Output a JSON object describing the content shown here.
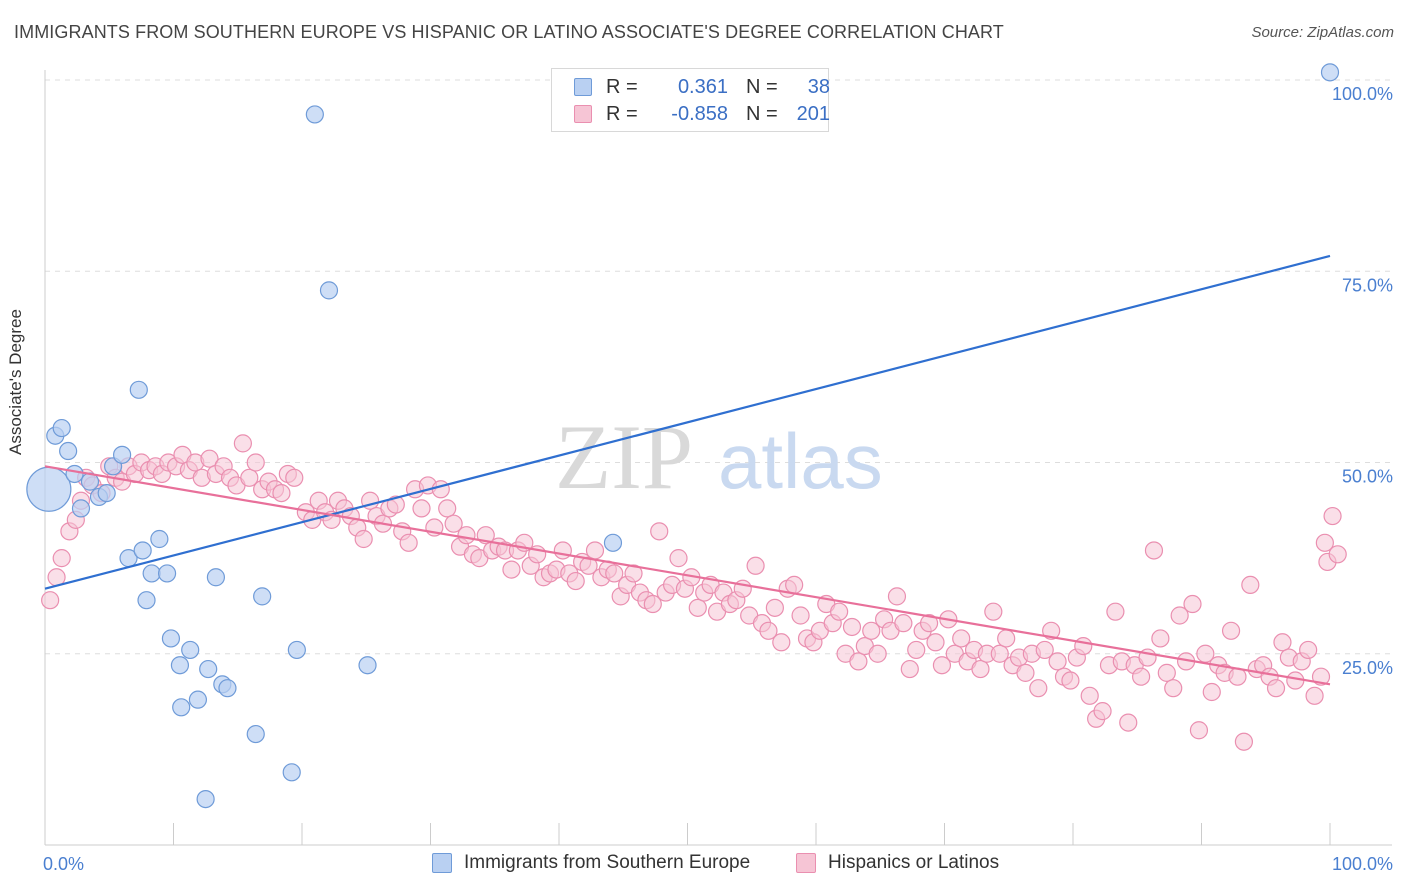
{
  "title": "IMMIGRANTS FROM SOUTHERN EUROPE VS HISPANIC OR LATINO ASSOCIATE'S DEGREE CORRELATION CHART",
  "source": "Source: ZipAtlas.com",
  "legend_top": {
    "rows": [
      {
        "r_label": "R =",
        "r_value": "0.361",
        "n_label": "N =",
        "n_value": "38"
      },
      {
        "r_label": "R =",
        "r_value": "-0.858",
        "n_label": "N =",
        "n_value": "201"
      }
    ]
  },
  "legend_bottom": {
    "series1": "Immigrants from Southern Europe",
    "series2": "Hispanics or Latinos"
  },
  "watermark": {
    "zip": "ZIP",
    "atlas": "atlas"
  },
  "colors": {
    "blue_fill": "#b9d0f2",
    "blue_stroke": "#6f9bd8",
    "blue_line": "#2f6fd0",
    "pink_fill": "#f6c5d5",
    "pink_stroke": "#ea8fb0",
    "pink_line": "#e8709a",
    "tick_text": "#4a7fd0",
    "grid": "#dddddd"
  },
  "chart_data": {
    "type": "scatter",
    "title": "IMMIGRANTS FROM SOUTHERN EUROPE VS HISPANIC OR LATINO ASSOCIATE'S DEGREE CORRELATION CHART",
    "xlabel": "",
    "ylabel": "Associate's Degree",
    "xlim": [
      0,
      100
    ],
    "ylim": [
      0,
      105
    ],
    "x_tick_labels": [
      "0.0%",
      "100.0%"
    ],
    "y_ticks": [
      25,
      50,
      75,
      100
    ],
    "y_tick_labels": [
      "25.0%",
      "50.0%",
      "75.0%",
      "100.0%"
    ],
    "series": [
      {
        "name": "Immigrants from Southern Europe",
        "R": 0.361,
        "N": 38,
        "trend": {
          "x0": 0,
          "y0": 33.5,
          "x1": 100,
          "y1": 77
        },
        "points": [
          [
            0.3,
            46.5,
            3
          ],
          [
            0.8,
            53.5,
            1
          ],
          [
            1.3,
            54.5,
            1
          ],
          [
            1.8,
            51.5,
            1
          ],
          [
            2.3,
            48.5,
            1
          ],
          [
            2.8,
            44,
            1
          ],
          [
            3.5,
            47.5,
            1
          ],
          [
            4.2,
            45.5,
            1
          ],
          [
            4.8,
            46,
            1
          ],
          [
            5.3,
            49.5,
            1
          ],
          [
            6,
            51,
            1
          ],
          [
            6.5,
            37.5,
            1
          ],
          [
            7.3,
            59.5,
            1
          ],
          [
            7.6,
            38.5,
            1
          ],
          [
            7.9,
            32,
            1
          ],
          [
            8.3,
            35.5,
            1
          ],
          [
            8.9,
            40,
            1
          ],
          [
            9.5,
            35.5,
            1
          ],
          [
            9.8,
            27,
            1
          ],
          [
            10.5,
            23.5,
            1
          ],
          [
            10.6,
            18,
            1
          ],
          [
            11.3,
            25.5,
            1
          ],
          [
            11.9,
            19,
            1
          ],
          [
            12.5,
            6,
            1
          ],
          [
            12.7,
            23,
            1
          ],
          [
            13.3,
            35,
            1
          ],
          [
            13.8,
            21,
            1
          ],
          [
            14.2,
            20.5,
            1
          ],
          [
            16.4,
            14.5,
            1
          ],
          [
            16.9,
            32.5,
            1
          ],
          [
            19.2,
            9.5,
            1
          ],
          [
            19.6,
            25.5,
            1
          ],
          [
            21,
            95.5,
            1
          ],
          [
            22.1,
            72.5,
            1
          ],
          [
            25.1,
            23.5,
            1
          ],
          [
            44.2,
            39.5,
            1
          ],
          [
            100,
            101,
            1
          ]
        ]
      },
      {
        "name": "Hispanics or Latinos",
        "R": -0.858,
        "N": 201,
        "trend": {
          "x0": 0,
          "y0": 49.5,
          "x1": 100,
          "y1": 21
        },
        "points": [
          [
            0.4,
            32
          ],
          [
            0.9,
            35
          ],
          [
            1.3,
            37.5
          ],
          [
            1.9,
            41
          ],
          [
            2.4,
            42.5
          ],
          [
            2.8,
            45
          ],
          [
            3.2,
            48
          ],
          [
            3.7,
            47
          ],
          [
            4.4,
            46
          ],
          [
            5,
            49.5
          ],
          [
            5.5,
            48
          ],
          [
            6,
            47.5
          ],
          [
            6.5,
            49.5
          ],
          [
            7,
            48.5
          ],
          [
            7.5,
            50
          ],
          [
            8.1,
            49
          ],
          [
            8.6,
            49.5
          ],
          [
            9.1,
            48.5
          ],
          [
            9.6,
            50
          ],
          [
            10.2,
            49.5
          ],
          [
            10.7,
            51
          ],
          [
            11.2,
            49
          ],
          [
            11.7,
            50
          ],
          [
            12.2,
            48
          ],
          [
            12.8,
            50.5
          ],
          [
            13.3,
            48.5
          ],
          [
            13.9,
            49.5
          ],
          [
            14.4,
            48
          ],
          [
            14.9,
            47
          ],
          [
            15.4,
            52.5
          ],
          [
            15.9,
            48
          ],
          [
            16.4,
            50
          ],
          [
            16.9,
            46.5
          ],
          [
            17.4,
            47.5
          ],
          [
            17.9,
            46.5
          ],
          [
            18.4,
            46
          ],
          [
            18.9,
            48.5
          ],
          [
            19.4,
            48
          ],
          [
            20.3,
            43.5
          ],
          [
            20.8,
            42.5
          ],
          [
            21.3,
            45
          ],
          [
            21.8,
            43.5
          ],
          [
            22.3,
            42.5
          ],
          [
            22.8,
            45
          ],
          [
            23.3,
            44
          ],
          [
            23.8,
            43
          ],
          [
            24.3,
            41.5
          ],
          [
            24.8,
            40
          ],
          [
            25.3,
            45
          ],
          [
            25.8,
            43
          ],
          [
            26.3,
            42
          ],
          [
            26.8,
            44
          ],
          [
            27.3,
            44.5
          ],
          [
            27.8,
            41
          ],
          [
            28.3,
            39.5
          ],
          [
            28.8,
            46.5
          ],
          [
            29.3,
            44
          ],
          [
            29.8,
            47
          ],
          [
            30.3,
            41.5
          ],
          [
            30.8,
            46.5
          ],
          [
            31.3,
            44
          ],
          [
            31.8,
            42
          ],
          [
            32.3,
            39
          ],
          [
            32.8,
            40.5
          ],
          [
            33.3,
            38
          ],
          [
            33.8,
            37.5
          ],
          [
            34.3,
            40.5
          ],
          [
            34.8,
            38.5
          ],
          [
            35.3,
            39
          ],
          [
            35.8,
            38.5
          ],
          [
            36.3,
            36
          ],
          [
            36.8,
            38.5
          ],
          [
            37.3,
            39.5
          ],
          [
            37.8,
            36.5
          ],
          [
            38.3,
            38
          ],
          [
            38.8,
            35
          ],
          [
            39.3,
            35.5
          ],
          [
            39.8,
            36
          ],
          [
            40.3,
            38.5
          ],
          [
            40.8,
            35.5
          ],
          [
            41.3,
            34.5
          ],
          [
            41.8,
            37
          ],
          [
            42.3,
            36.5
          ],
          [
            42.8,
            38.5
          ],
          [
            43.3,
            35
          ],
          [
            43.8,
            36
          ],
          [
            44.3,
            35.5
          ],
          [
            44.8,
            32.5
          ],
          [
            45.3,
            34
          ],
          [
            45.8,
            35.5
          ],
          [
            46.3,
            33
          ],
          [
            46.8,
            32
          ],
          [
            47.3,
            31.5
          ],
          [
            47.8,
            41
          ],
          [
            48.3,
            33
          ],
          [
            48.8,
            34
          ],
          [
            49.3,
            37.5
          ],
          [
            49.8,
            33.5
          ],
          [
            50.3,
            35
          ],
          [
            50.8,
            31
          ],
          [
            51.3,
            33
          ],
          [
            51.8,
            34
          ],
          [
            52.3,
            30.5
          ],
          [
            52.8,
            33
          ],
          [
            53.3,
            31.5
          ],
          [
            53.8,
            32
          ],
          [
            54.3,
            33.5
          ],
          [
            54.8,
            30
          ],
          [
            55.3,
            36.5
          ],
          [
            55.8,
            29
          ],
          [
            56.3,
            28
          ],
          [
            56.8,
            31
          ],
          [
            57.3,
            26.5
          ],
          [
            57.8,
            33.5
          ],
          [
            58.3,
            34
          ],
          [
            58.8,
            30
          ],
          [
            59.3,
            27
          ],
          [
            59.8,
            26.5
          ],
          [
            60.3,
            28
          ],
          [
            60.8,
            31.5
          ],
          [
            61.3,
            29
          ],
          [
            61.8,
            30.5
          ],
          [
            62.3,
            25
          ],
          [
            62.8,
            28.5
          ],
          [
            63.3,
            24
          ],
          [
            63.8,
            26
          ],
          [
            64.3,
            28
          ],
          [
            64.8,
            25
          ],
          [
            65.3,
            29.5
          ],
          [
            65.8,
            28
          ],
          [
            66.3,
            32.5
          ],
          [
            66.8,
            29
          ],
          [
            67.3,
            23
          ],
          [
            67.8,
            25.5
          ],
          [
            68.3,
            28
          ],
          [
            68.8,
            29
          ],
          [
            69.3,
            26.5
          ],
          [
            69.8,
            23.5
          ],
          [
            70.3,
            29.5
          ],
          [
            70.8,
            25
          ],
          [
            71.3,
            27
          ],
          [
            71.8,
            24
          ],
          [
            72.3,
            25.5
          ],
          [
            72.8,
            23
          ],
          [
            73.3,
            25
          ],
          [
            73.8,
            30.5
          ],
          [
            74.3,
            25
          ],
          [
            74.8,
            27
          ],
          [
            75.3,
            23.5
          ],
          [
            75.8,
            24.5
          ],
          [
            76.3,
            22.5
          ],
          [
            76.8,
            25
          ],
          [
            77.3,
            20.5
          ],
          [
            77.8,
            25.5
          ],
          [
            78.3,
            28
          ],
          [
            78.8,
            24
          ],
          [
            79.3,
            22
          ],
          [
            79.8,
            21.5
          ],
          [
            80.3,
            24.5
          ],
          [
            80.8,
            26
          ],
          [
            81.3,
            19.5
          ],
          [
            81.8,
            16.5
          ],
          [
            82.3,
            17.5
          ],
          [
            82.8,
            23.5
          ],
          [
            83.3,
            30.5
          ],
          [
            83.8,
            24
          ],
          [
            84.3,
            16
          ],
          [
            84.8,
            23.5
          ],
          [
            85.3,
            22
          ],
          [
            85.8,
            24.5
          ],
          [
            86.3,
            38.5
          ],
          [
            86.8,
            27
          ],
          [
            87.3,
            22.5
          ],
          [
            87.8,
            20.5
          ],
          [
            88.3,
            30
          ],
          [
            88.8,
            24
          ],
          [
            89.3,
            31.5
          ],
          [
            89.8,
            15
          ],
          [
            90.3,
            25
          ],
          [
            90.8,
            20
          ],
          [
            91.3,
            23.5
          ],
          [
            91.8,
            22.5
          ],
          [
            92.3,
            28
          ],
          [
            92.8,
            22
          ],
          [
            93.3,
            13.5
          ],
          [
            93.8,
            34
          ],
          [
            94.3,
            23
          ],
          [
            94.8,
            23.5
          ],
          [
            95.3,
            22
          ],
          [
            95.8,
            20.5
          ],
          [
            96.3,
            26.5
          ],
          [
            96.8,
            24.5
          ],
          [
            97.3,
            21.5
          ],
          [
            97.8,
            24
          ],
          [
            98.3,
            25.5
          ],
          [
            98.8,
            19.5
          ],
          [
            99.3,
            22
          ],
          [
            99.6,
            39.5
          ],
          [
            99.8,
            37
          ],
          [
            100.2,
            43
          ],
          [
            100.6,
            38
          ]
        ]
      }
    ]
  }
}
